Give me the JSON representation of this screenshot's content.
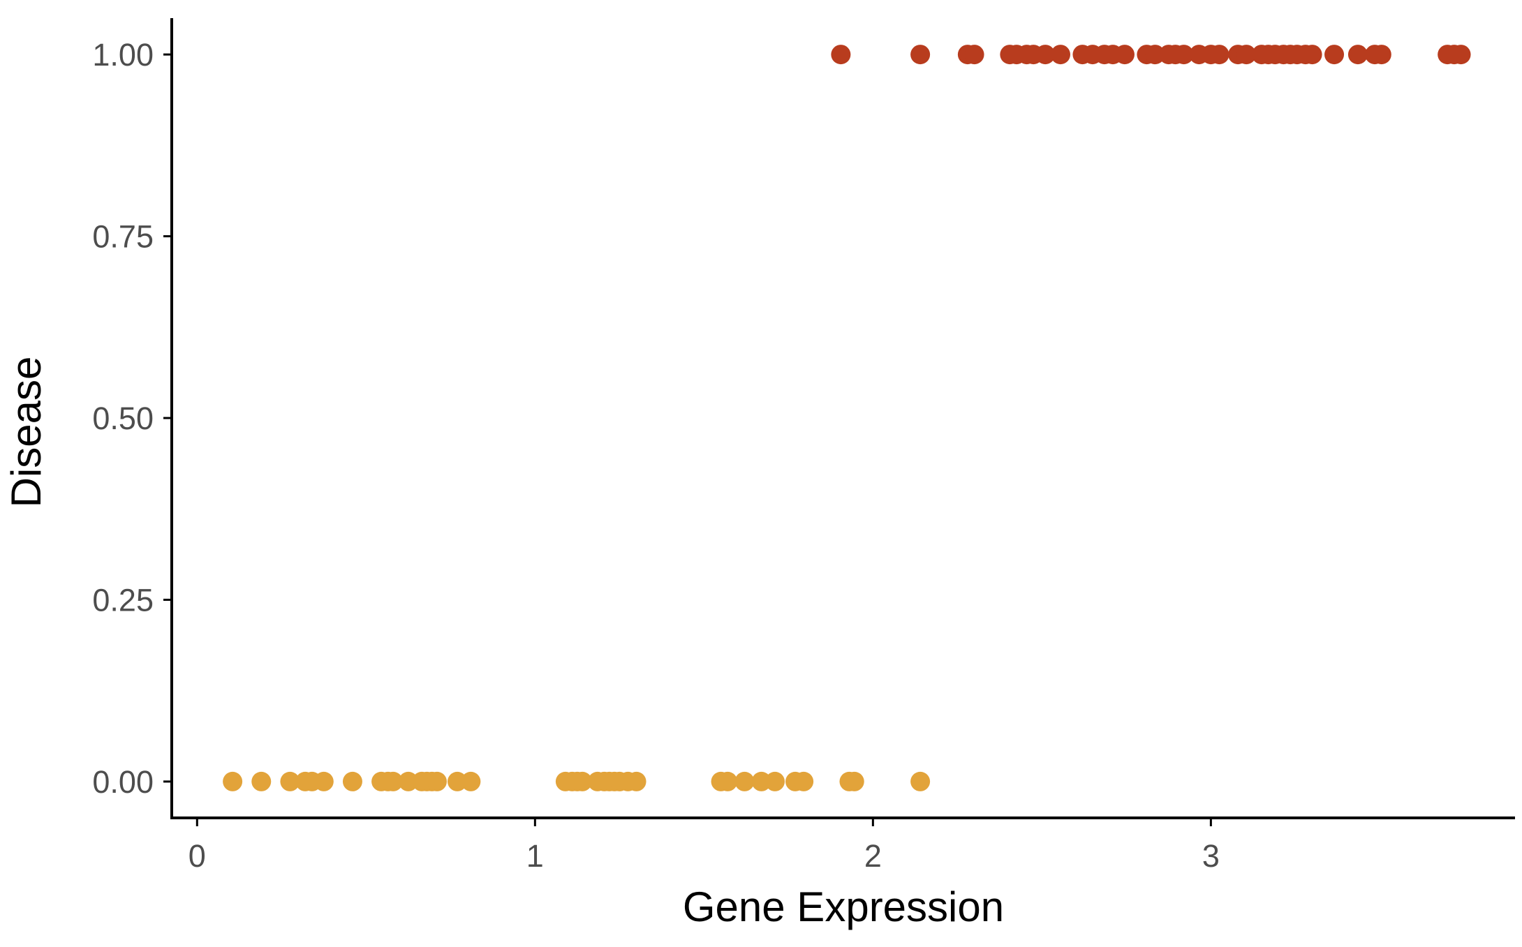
{
  "chart_data": {
    "type": "scatter",
    "title": "",
    "xlabel": "Gene Expression",
    "ylabel": "Disease",
    "xlim": [
      -0.075,
      3.9
    ],
    "ylim": [
      -0.05,
      1.05
    ],
    "x_ticks": [
      0,
      1,
      2,
      3
    ],
    "x_tick_labels": [
      "0",
      "1",
      "2",
      "3"
    ],
    "y_ticks": [
      0,
      0.25,
      0.5,
      0.75,
      1
    ],
    "y_tick_labels": [
      "0.00",
      "0.25",
      "0.50",
      "0.75",
      "1.00"
    ],
    "grid": false,
    "legend": "none",
    "series": [
      {
        "color": "#e2a33a",
        "y": 0,
        "x": [
          0.105,
          0.19,
          0.275,
          0.32,
          0.34,
          0.375,
          0.46,
          0.545,
          0.565,
          0.58,
          0.625,
          0.665,
          0.68,
          0.695,
          0.71,
          0.77,
          0.81,
          1.09,
          1.11,
          1.125,
          1.14,
          1.185,
          1.205,
          1.22,
          1.235,
          1.25,
          1.275,
          1.3,
          1.55,
          1.57,
          1.62,
          1.67,
          1.71,
          1.77,
          1.795,
          1.93,
          1.945,
          2.14
        ]
      },
      {
        "color": "#b83c1e",
        "y": 1,
        "x": [
          1.905,
          2.14,
          2.28,
          2.3,
          2.405,
          2.425,
          2.455,
          2.475,
          2.51,
          2.555,
          2.62,
          2.65,
          2.685,
          2.71,
          2.745,
          2.81,
          2.835,
          2.875,
          2.895,
          2.92,
          2.965,
          3.0,
          3.025,
          3.08,
          3.105,
          3.15,
          3.17,
          3.19,
          3.215,
          3.235,
          3.255,
          3.28,
          3.3,
          3.365,
          3.435,
          3.485,
          3.505,
          3.7,
          3.72,
          3.74
        ]
      }
    ]
  }
}
